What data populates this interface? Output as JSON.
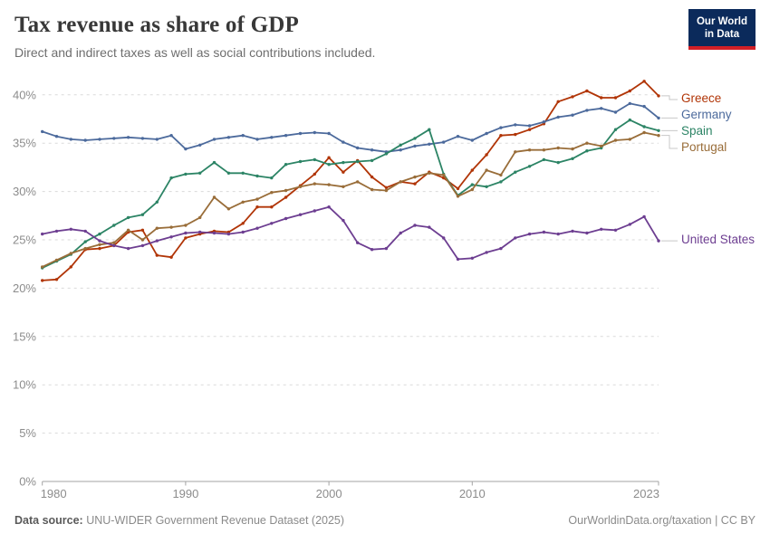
{
  "header": {
    "title": "Tax revenue as share of GDP",
    "subtitle": "Direct and indirect taxes as well as social contributions included."
  },
  "logo": {
    "line1": "Our World",
    "line2": "in Data",
    "bg_color": "#0B2A5B",
    "accent_color": "#D21F26"
  },
  "footer": {
    "source_label": "Data source:",
    "source_text": " UNU-WIDER Government Revenue Dataset (2025)",
    "right_text": "OurWorldinData.org/taxation | CC BY"
  },
  "chart_data": {
    "type": "line",
    "title": "Tax revenue as share of GDP",
    "xlabel": "",
    "ylabel": "",
    "ylim": [
      0,
      40
    ],
    "grid": "dashed-horizontal",
    "legend_position": "right",
    "y_tick_values": [
      0,
      5,
      10,
      15,
      20,
      25,
      30,
      35,
      40
    ],
    "y_tick_labels": [
      "0%",
      "5%",
      "10%",
      "15%",
      "20%",
      "25%",
      "30%",
      "35%",
      "40%"
    ],
    "x_ticks": [
      1980,
      1990,
      2000,
      2010,
      2023
    ],
    "years": [
      1980,
      1981,
      1982,
      1983,
      1984,
      1985,
      1986,
      1987,
      1988,
      1989,
      1990,
      1991,
      1992,
      1993,
      1994,
      1995,
      1996,
      1997,
      1998,
      1999,
      2000,
      2001,
      2002,
      2003,
      2004,
      2005,
      2006,
      2007,
      2008,
      2009,
      2010,
      2011,
      2012,
      2013,
      2014,
      2015,
      2016,
      2017,
      2018,
      2019,
      2020,
      2021,
      2022,
      2023
    ],
    "series": [
      {
        "name": "Greece",
        "color": "#B13507",
        "values": [
          20.8,
          20.9,
          22.2,
          24.0,
          24.1,
          24.4,
          25.8,
          26.0,
          23.4,
          23.2,
          25.2,
          25.6,
          25.9,
          25.8,
          26.7,
          28.4,
          28.4,
          29.4,
          30.6,
          31.8,
          33.5,
          32.0,
          33.2,
          31.5,
          30.4,
          31.0,
          30.8,
          32.0,
          31.4,
          30.3,
          32.2,
          33.8,
          35.8,
          35.9,
          36.4,
          37.0,
          39.3,
          39.8,
          40.4,
          39.7,
          39.7,
          40.4,
          41.4,
          39.9
        ]
      },
      {
        "name": "Germany",
        "color": "#4C6A9C",
        "values": [
          36.2,
          35.7,
          35.4,
          35.3,
          35.4,
          35.5,
          35.6,
          35.5,
          35.4,
          35.8,
          34.4,
          34.8,
          35.4,
          35.6,
          35.8,
          35.4,
          35.6,
          35.8,
          36.0,
          36.1,
          36.0,
          35.1,
          34.5,
          34.3,
          34.1,
          34.3,
          34.7,
          34.9,
          35.1,
          35.7,
          35.3,
          36.0,
          36.6,
          36.9,
          36.8,
          37.2,
          37.7,
          37.9,
          38.4,
          38.6,
          38.2,
          39.1,
          38.8,
          37.6
        ]
      },
      {
        "name": "Spain",
        "color": "#2C8465",
        "values": [
          22.1,
          22.8,
          23.5,
          24.8,
          25.6,
          26.5,
          27.3,
          27.6,
          28.9,
          31.4,
          31.8,
          31.9,
          33.0,
          31.9,
          31.9,
          31.6,
          31.4,
          32.8,
          33.1,
          33.3,
          32.8,
          33.0,
          33.1,
          33.2,
          33.9,
          34.8,
          35.5,
          36.4,
          31.8,
          29.6,
          30.7,
          30.5,
          31.0,
          32.0,
          32.6,
          33.3,
          33.0,
          33.4,
          34.2,
          34.5,
          36.4,
          37.4,
          36.7,
          36.3
        ]
      },
      {
        "name": "Portugal",
        "color": "#996D39",
        "values": [
          22.2,
          22.9,
          23.6,
          24.1,
          24.5,
          24.7,
          26.0,
          25.0,
          26.2,
          26.3,
          26.5,
          27.3,
          29.4,
          28.2,
          28.9,
          29.2,
          29.9,
          30.1,
          30.5,
          30.8,
          30.7,
          30.5,
          31.0,
          30.2,
          30.1,
          31.0,
          31.5,
          31.9,
          31.7,
          29.5,
          30.2,
          32.2,
          31.7,
          34.1,
          34.3,
          34.3,
          34.5,
          34.4,
          35.0,
          34.7,
          35.3,
          35.4,
          36.1,
          35.8
        ]
      },
      {
        "name": "United States",
        "color": "#6D3E91",
        "values": [
          25.6,
          25.9,
          26.1,
          25.9,
          24.9,
          24.4,
          24.1,
          24.4,
          24.9,
          25.3,
          25.7,
          25.8,
          25.7,
          25.6,
          25.8,
          26.2,
          26.7,
          27.2,
          27.6,
          28.0,
          28.4,
          27.0,
          24.7,
          24.0,
          24.1,
          25.7,
          26.5,
          26.3,
          25.2,
          23.0,
          23.1,
          23.7,
          24.1,
          25.2,
          25.6,
          25.8,
          25.6,
          25.9,
          25.7,
          26.1,
          26.0,
          26.6,
          27.4,
          24.9
        ]
      }
    ]
  }
}
